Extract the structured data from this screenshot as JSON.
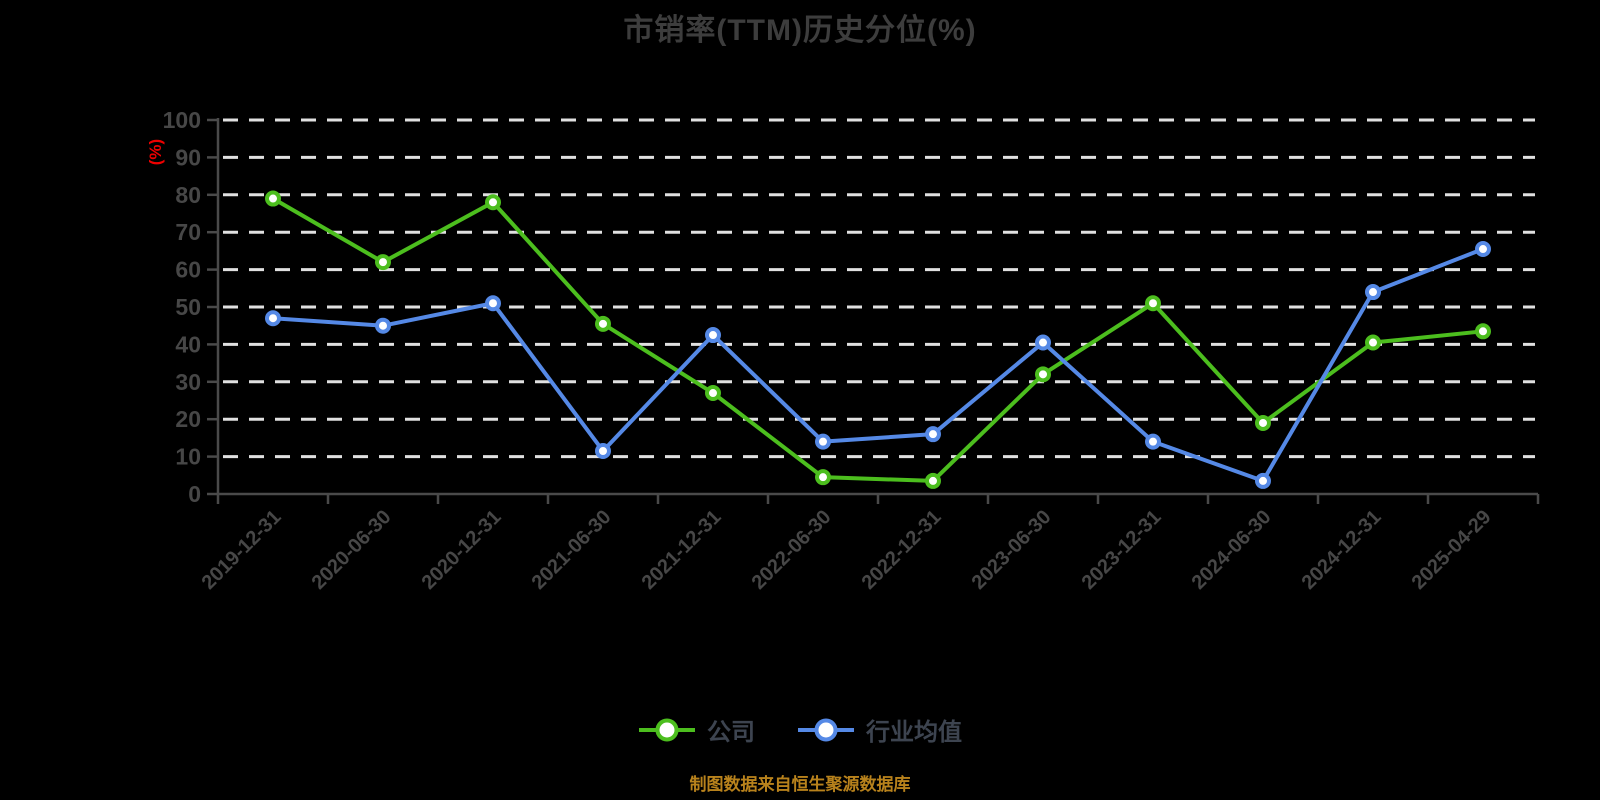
{
  "title": "市销率(TTM)历史分位(%)",
  "y_axis_unit": "(%)",
  "source_note": "制图数据来自恒生聚源数据库",
  "colors": {
    "background": "#000000",
    "title": "#3d3d3d",
    "axis": "#4a4a4a",
    "tick_label": "#474747",
    "grid": "#e0e0e0",
    "unit_label": "#ee0000",
    "source_note": "#b8821c",
    "legend_label": "#3d4450",
    "marker_fill": "#ffffff",
    "company": "#4cbe1e",
    "industry": "#5589e6"
  },
  "chart_data": {
    "type": "line",
    "title": "市销率(TTM)历史分位(%)",
    "ylabel": "(%)",
    "ylim": [
      0,
      100
    ],
    "ytick_step": 10,
    "grid": "horizontal-dashed",
    "legend_position": "bottom",
    "x": [
      "2019-12-31",
      "2020-06-30",
      "2020-12-31",
      "2021-06-30",
      "2021-12-31",
      "2022-06-30",
      "2022-12-31",
      "2023-06-30",
      "2023-12-31",
      "2024-06-30",
      "2024-12-31",
      "2025-04-29"
    ],
    "series": [
      {
        "name": "公司",
        "color_key": "company",
        "values": [
          79,
          62,
          78,
          45.5,
          27,
          4.5,
          3.5,
          32,
          51,
          19,
          40.5,
          43.5
        ]
      },
      {
        "name": "行业均值",
        "color_key": "industry",
        "values": [
          47,
          45,
          51,
          11.5,
          42.5,
          14,
          16,
          40.5,
          14,
          3.5,
          54,
          65.5
        ]
      }
    ]
  }
}
